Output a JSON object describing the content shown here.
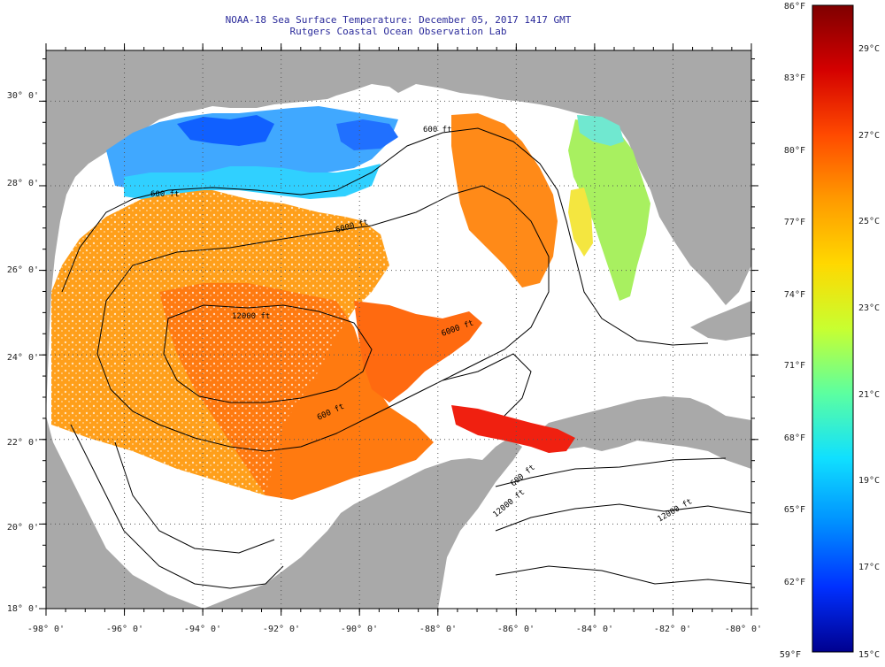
{
  "title": {
    "line1": "NOAA-18 Sea Surface Temperature:  December 05, 2017 1417 GMT",
    "line2": "Rutgers Coastal Ocean Observation Lab"
  },
  "map": {
    "lon_ticks": [
      "-98° 0'",
      "-96° 0'",
      "-94° 0'",
      "-92° 0'",
      "-90° 0'",
      "-88° 0'",
      "-86° 0'",
      "-84° 0'",
      "-82° 0'",
      "-80° 0'"
    ],
    "lat_ticks": [
      "30° 0'",
      "28° 0'",
      "26° 0'",
      "24° 0'",
      "22° 0'",
      "20° 0'",
      "18° 0'"
    ],
    "lon_range": [
      -98,
      -80
    ],
    "lat_range": [
      18,
      31.2
    ],
    "contour_labels": [
      "600 ft",
      "600 ft",
      "6000 ft",
      "12000 ft",
      "6000 ft",
      "600 ft",
      "600 ft",
      "12000 ft",
      "12000 ft"
    ],
    "colors": {
      "land": "#a9a9a9",
      "no_data": "#ffffff",
      "contour": "#000000"
    }
  },
  "colorbar": {
    "fahrenheit_labels": [
      "86°F",
      "83°F",
      "80°F",
      "77°F",
      "74°F",
      "71°F",
      "68°F",
      "65°F",
      "62°F",
      "59°F"
    ],
    "celsius_labels": [
      "29°C",
      "27°C",
      "25°C",
      "23°C",
      "21°C",
      "19°C",
      "17°C",
      "15°C"
    ],
    "stops": [
      "#7f0000",
      "#d40000",
      "#ff4a00",
      "#ff9a00",
      "#ffd800",
      "#c8ff30",
      "#5cffa0",
      "#10e0ff",
      "#0090ff",
      "#0030ff",
      "#00008f"
    ]
  }
}
